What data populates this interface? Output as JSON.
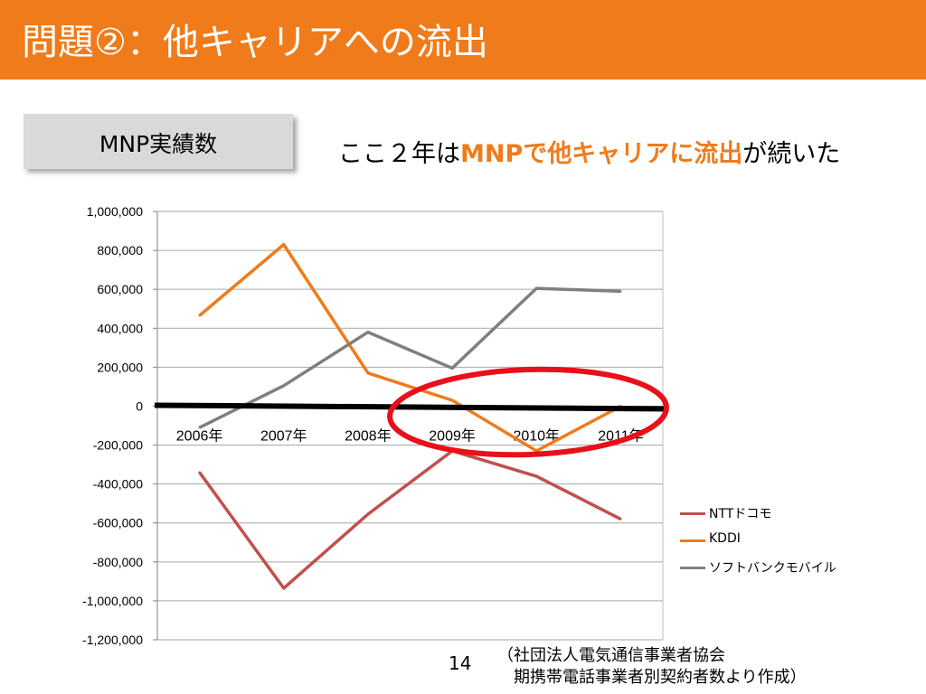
{
  "slide": {
    "title": "問題②：他キャリアへの流出",
    "box_label": "MNP実績数",
    "headline": {
      "pre": "ここ２年は",
      "highlight": "MNPで他キャリアに流出",
      "post": "が続いた"
    },
    "page_number": "14",
    "source_line1": "（社団法人電気通信事業者協会",
    "source_line2": "期携帯電話事業者別契約者数より作成）",
    "accent_color": "#f07b1a"
  },
  "chart_data": {
    "type": "line",
    "categories": [
      "2006年",
      "2007年",
      "2008年",
      "2009年",
      "2010年",
      "2011年"
    ],
    "series": [
      {
        "name": "NTTドコモ",
        "color": "#c0504d",
        "values": [
          -340000,
          -935000,
          -555000,
          -230000,
          -360000,
          -580000
        ]
      },
      {
        "name": "KDDI",
        "color": "#f07b1a",
        "values": [
          465000,
          830000,
          170000,
          30000,
          -230000,
          0
        ]
      },
      {
        "name": "ソフトバンクモバイル",
        "color": "#7f7f7f",
        "values": [
          -110000,
          105000,
          380000,
          195000,
          605000,
          590000
        ]
      }
    ],
    "ylim": [
      -1200000,
      1000000
    ],
    "yticks": [
      -1200000,
      -1000000,
      -800000,
      -600000,
      -400000,
      -200000,
      0,
      200000,
      400000,
      600000,
      800000,
      1000000
    ],
    "ytick_labels": [
      "-1,200,000",
      "-1,000,000",
      "-800,000",
      "-600,000",
      "-400,000",
      "-200,000",
      "0",
      "200,000",
      "400,000",
      "600,000",
      "800,000",
      "1,000,000"
    ],
    "grid": true,
    "legend": "right",
    "annotation": "red ellipse circling 2009年–2011年 around zero line"
  }
}
